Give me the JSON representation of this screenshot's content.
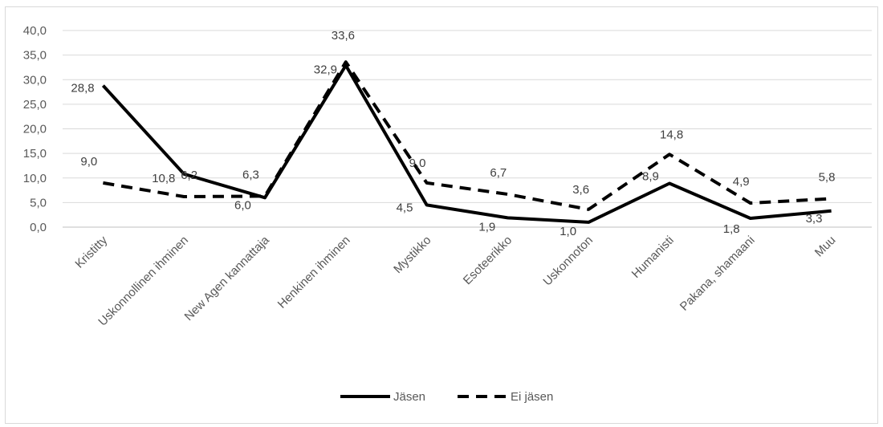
{
  "chart_data": {
    "type": "line",
    "categories": [
      "Kristitty",
      "Uskonnollinen ihminen",
      "New Agen kannattaja",
      "Henkinen ihminen",
      "Mystikko",
      "Esoteerikko",
      "Uskonnoton",
      "Humanisti",
      "Pakana, shamaani",
      "Muu"
    ],
    "series": [
      {
        "name": "Jäsen",
        "values": [
          28.8,
          10.8,
          6.0,
          32.9,
          4.5,
          1.9,
          1.0,
          8.9,
          1.8,
          3.3
        ],
        "color": "#000000",
        "dash": "solid"
      },
      {
        "name": "Ei jäsen",
        "values": [
          9.0,
          6.2,
          6.3,
          33.6,
          9.0,
          6.7,
          3.6,
          14.8,
          4.9,
          5.8
        ],
        "color": "#000000",
        "dash": "dashed"
      }
    ],
    "labels": {
      "Jäsen": [
        "28,8",
        "10,8",
        "6,0",
        "32,9",
        "4,5",
        "1,9",
        "1,0",
        "8,9",
        "1,8",
        "3,3"
      ],
      "Ei jäsen": [
        "9,0",
        "6,2",
        "6,3",
        "33,6",
        "9,0",
        "6,7",
        "3,6",
        "14,8",
        "4,9",
        "5,8"
      ]
    },
    "yticks": [
      "0,0",
      "5,0",
      "10,0",
      "15,0",
      "20,0",
      "25,0",
      "30,0",
      "35,0",
      "40,0"
    ],
    "ylim": [
      0,
      40
    ],
    "grid": true,
    "legend": "bottom",
    "title": "",
    "xlabel": "",
    "ylabel": ""
  }
}
